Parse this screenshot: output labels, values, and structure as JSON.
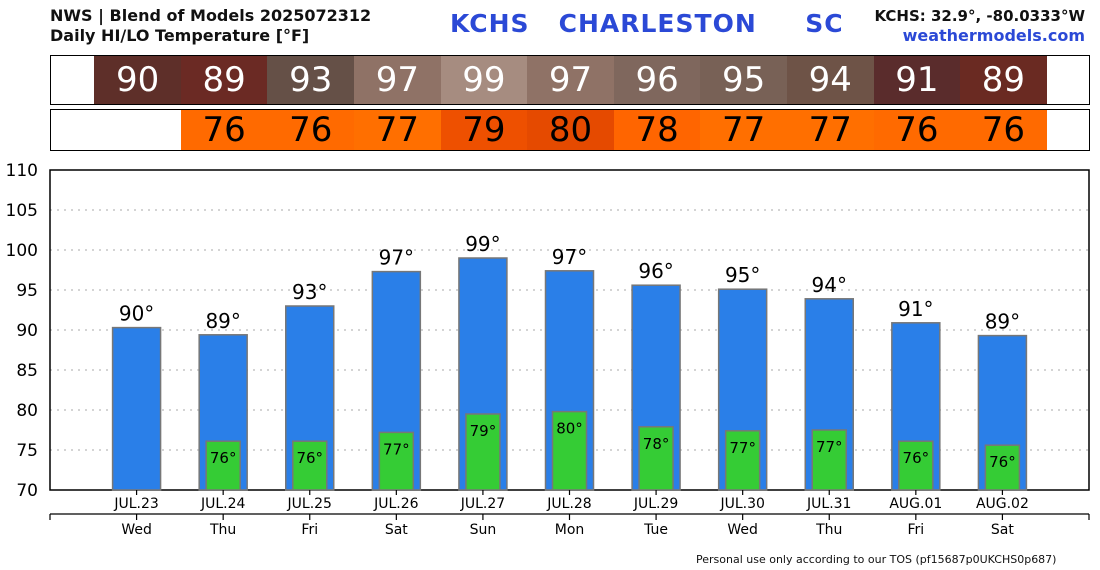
{
  "header": {
    "line1": "NWS | Blend of Models 2025072312",
    "line2": "Daily HI/LO Temperature [°F]",
    "station": "KCHS   CHARLESTON     SC",
    "coords": "KCHS: 32.9°, -80.0333°W",
    "site": "weathermodels.com"
  },
  "footer": "Personal use only according to our TOS (pf15687p0UKCHS0p687)",
  "colors": {
    "hi_bar": "#2a7fe8",
    "lo_bar": "#35cc35",
    "bar_border": "#777777",
    "hi_cells": [
      "#5e2f29",
      "#6b2a24",
      "#655047",
      "#8f7266",
      "#a68c80",
      "#8f7266",
      "#7f675d",
      "#786156",
      "#6e5347",
      "#5a2c2c",
      "#6a2a22"
    ],
    "lo_cells": [
      "#ff6a00",
      "#ff6a00",
      "#ff6f00",
      "#ee5000",
      "#e54a00",
      "#ff6500",
      "#ff6f00",
      "#ff6f00",
      "#ff6a00",
      "#ff6a00"
    ]
  },
  "hi_strip": [
    "90",
    "89",
    "93",
    "97",
    "99",
    "97",
    "96",
    "95",
    "94",
    "91",
    "89"
  ],
  "lo_strip": [
    "76",
    "76",
    "77",
    "79",
    "80",
    "78",
    "77",
    "77",
    "76",
    "76"
  ],
  "chart_data": {
    "type": "bar",
    "categories": [
      "JUL.23",
      "JUL.24",
      "JUL.25",
      "JUL.26",
      "JUL.27",
      "JUL.28",
      "JUL.29",
      "JUL.30",
      "JUL.31",
      "AUG.01",
      "AUG.02"
    ],
    "weekdays": [
      "Wed",
      "Thu",
      "Fri",
      "Sat",
      "Sun",
      "Mon",
      "Tue",
      "Wed",
      "Thu",
      "Fri",
      "Sat"
    ],
    "series": [
      {
        "values": [
          90.3,
          89.4,
          93.0,
          97.3,
          99.0,
          97.4,
          95.6,
          95.1,
          93.9,
          90.9,
          89.3
        ],
        "labels": [
          "90°",
          "89°",
          "93°",
          "97°",
          "99°",
          "97°",
          "96°",
          "95°",
          "94°",
          "91°",
          "89°"
        ]
      },
      {
        "values": [
          null,
          76.1,
          76.1,
          77.2,
          79.5,
          79.8,
          77.9,
          77.4,
          77.5,
          76.1,
          75.6
        ],
        "labels": [
          "",
          "76°",
          "76°",
          "77°",
          "79°",
          "80°",
          "78°",
          "77°",
          "77°",
          "76°",
          "76°"
        ]
      }
    ],
    "yticks": [
      "110",
      "105",
      "100",
      "95",
      "90",
      "85",
      "80",
      "75",
      "70"
    ],
    "ylim": [
      70,
      110
    ],
    "grid": true
  }
}
